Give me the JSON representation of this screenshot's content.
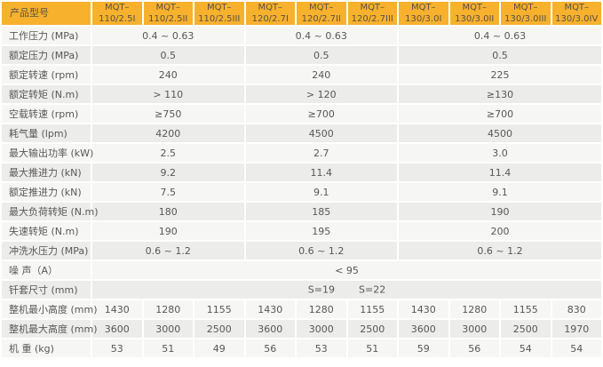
{
  "table": {
    "colors": {
      "header_bg": "#F7B12D",
      "header_text": "#5A5142",
      "row_light": "#F6F6F5",
      "row_dark": "#ECECEB",
      "cell_text": "#595757"
    },
    "header": {
      "label": "产品型号",
      "models": [
        "MQT–\n110/2.5I",
        "MQT–\n110/2.5II",
        "MQT–\n110/2.5III",
        "MQT–\n120/2.7I",
        "MQT–\n120/2.7II",
        "MQT–\n120/2.7III",
        "MQT–\n130/3.0I",
        "MQT–\n130/3.0II",
        "MQT–\n130/3.0III",
        "MQT–\n130/3.0IV"
      ]
    },
    "group_colspans": [
      3,
      3,
      4
    ],
    "rows": [
      {
        "type": "grouped",
        "label": "工作压力 (MPa)",
        "values": [
          "0.4 ~ 0.63",
          "0.4 ~ 0.63",
          "0.4 ~ 0.63"
        ]
      },
      {
        "type": "grouped",
        "label": "额定压力 (MPa)",
        "values": [
          "0.5",
          "0.5",
          "0.5"
        ]
      },
      {
        "type": "grouped",
        "label": "额定转速 (rpm)",
        "values": [
          "240",
          "240",
          "225"
        ]
      },
      {
        "type": "grouped",
        "label": "额定转矩 (N.m)",
        "values": [
          "> 110",
          "> 120",
          "≥130"
        ]
      },
      {
        "type": "grouped",
        "label": "空载转速 (rpm)",
        "values": [
          "≥750",
          "≥700",
          "≥700"
        ]
      },
      {
        "type": "grouped",
        "label": "耗气量 (lpm)",
        "values": [
          "4200",
          "4500",
          "4500"
        ]
      },
      {
        "type": "grouped",
        "label": "最大输出功率 (kW)",
        "values": [
          "2.5",
          "2.7",
          "3.0"
        ]
      },
      {
        "type": "grouped",
        "label": "最大推进力 (kN)",
        "values": [
          "9.2",
          "11.4",
          "11.4"
        ]
      },
      {
        "type": "grouped",
        "label": "额定推进力 (kN)",
        "values": [
          "7.5",
          "9.1",
          "9.1"
        ]
      },
      {
        "type": "grouped",
        "label": "最大负荷转矩 (N.m)",
        "values": [
          "180",
          "185",
          "190"
        ]
      },
      {
        "type": "grouped",
        "label": "失速转矩 (N.m)",
        "values": [
          "190",
          "195",
          "200"
        ]
      },
      {
        "type": "grouped",
        "label": "冲洗水压力 (MPa)",
        "values": [
          "0.6 ~ 1.2",
          "0.6 ~ 1.2",
          "0.6 ~ 1.2"
        ]
      },
      {
        "type": "span_all",
        "label": "噪 声（A）",
        "values": [
          "< 95"
        ]
      },
      {
        "type": "sleeve",
        "label": "钎套尺寸 (mm)",
        "values": [
          "S=19",
          "S=22"
        ]
      },
      {
        "type": "per_column",
        "label": "整机最小高度 (mm)",
        "values": [
          "1430",
          "1280",
          "1155",
          "1430",
          "1280",
          "1155",
          "1430",
          "1280",
          "1155",
          "830"
        ]
      },
      {
        "type": "per_column",
        "label": "整机最大高度 (mm)",
        "values": [
          "3600",
          "3000",
          "2500",
          "3600",
          "3000",
          "2500",
          "3600",
          "3000",
          "2500",
          "1970"
        ]
      },
      {
        "type": "per_column",
        "label": "机 重 (kg)",
        "values": [
          "53",
          "51",
          "49",
          "56",
          "53",
          "51",
          "59",
          "56",
          "54",
          "54"
        ]
      }
    ]
  }
}
